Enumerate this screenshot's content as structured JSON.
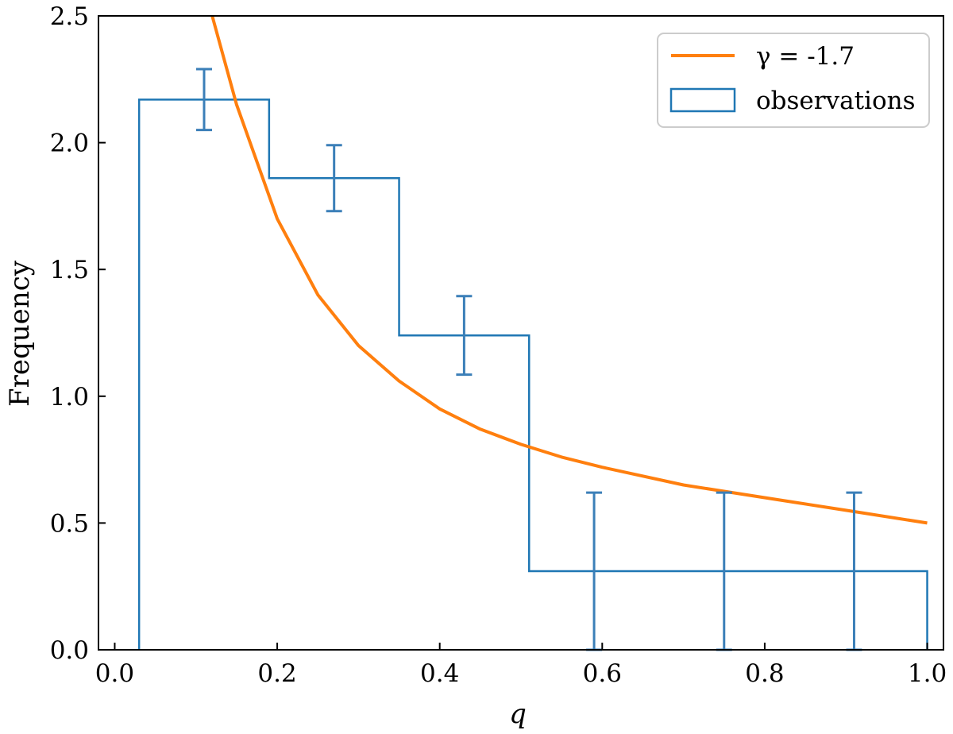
{
  "chart_data": {
    "type": "histogram",
    "xlabel": "q",
    "ylabel": "Frequency",
    "xlim": [
      -0.02,
      1.02
    ],
    "ylim": [
      0,
      2.5
    ],
    "xticks": [
      "0.0",
      "0.2",
      "0.4",
      "0.6",
      "0.8",
      "1.0"
    ],
    "yticks": [
      "0.0",
      "0.5",
      "1.0",
      "1.5",
      "2.0",
      "2.5"
    ],
    "grid": false,
    "legend_position": "top-right",
    "series": [
      {
        "name": "γ = -1.7",
        "kind": "line",
        "color": "#ff7f0e",
        "function": "power law q^γ (normalized), γ = -1.7",
        "x": [
          0.12,
          0.15,
          0.2,
          0.25,
          0.3,
          0.35,
          0.4,
          0.45,
          0.5,
          0.55,
          0.6,
          0.7,
          0.8,
          0.9,
          1.0
        ],
        "y": [
          2.5,
          2.15,
          1.7,
          1.4,
          1.2,
          1.06,
          0.95,
          0.87,
          0.81,
          0.76,
          0.72,
          0.65,
          0.6,
          0.55,
          0.5
        ]
      },
      {
        "name": "observations",
        "kind": "step-histogram",
        "color": "#1f77b4",
        "bin_edges": [
          0.03,
          0.19,
          0.35,
          0.51,
          0.67,
          0.83,
          1.0
        ],
        "values": [
          2.17,
          1.86,
          1.24,
          0.31,
          0.31,
          0.31
        ],
        "errorbars": [
          {
            "x": 0.11,
            "y": 2.17,
            "err": 0.12
          },
          {
            "x": 0.27,
            "y": 1.86,
            "err": 0.13
          },
          {
            "x": 0.43,
            "y": 1.24,
            "err": 0.155
          },
          {
            "x": 0.59,
            "y": 0.31,
            "err": 0.31
          },
          {
            "x": 0.75,
            "y": 0.31,
            "err": 0.31
          },
          {
            "x": 0.91,
            "y": 0.31,
            "err": 0.31
          }
        ]
      }
    ]
  }
}
